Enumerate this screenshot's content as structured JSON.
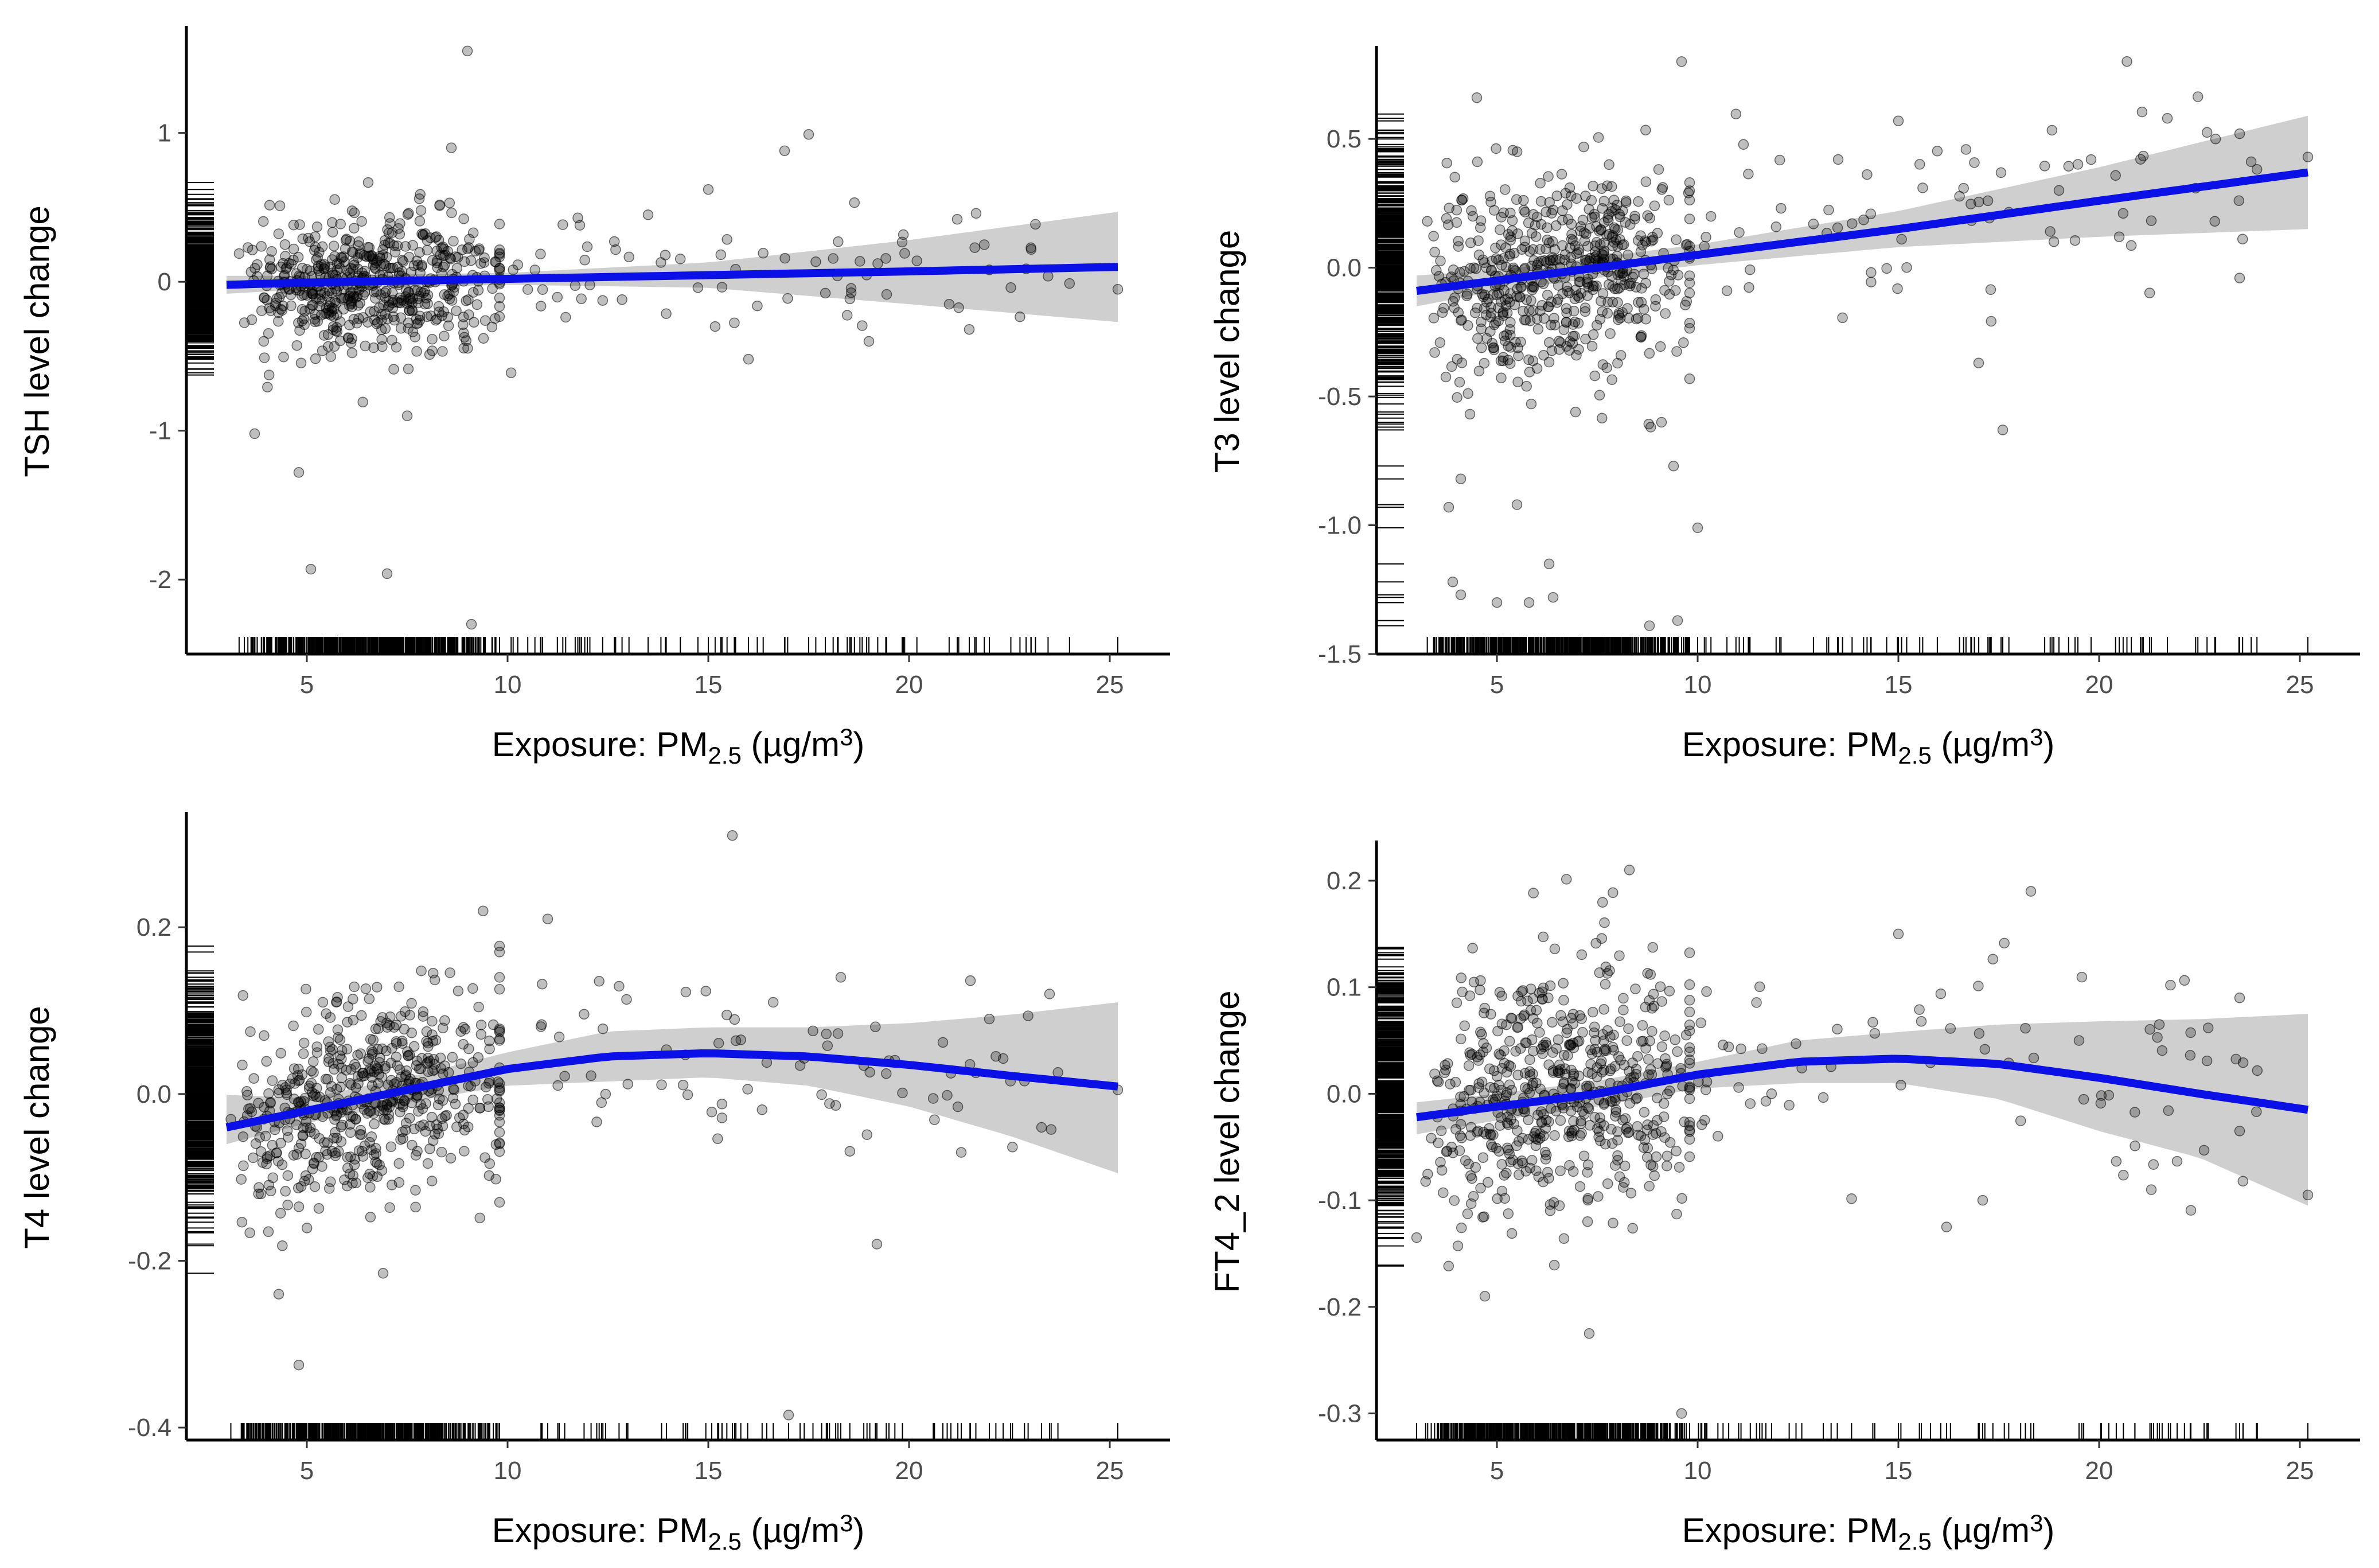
{
  "colors": {
    "fit_line": "#0a10e6",
    "band": "#bfbfbf",
    "points": "#000000"
  },
  "chart_data": [
    {
      "type": "scatter",
      "panel": "TSH",
      "title": "",
      "xlabel_prefix": "Exposure: PM",
      "xlabel_sub": "2.5",
      "xlabel_unit_open": " (µg/m",
      "xlabel_sup": "3",
      "xlabel_unit_close": ")",
      "ylabel": "TSH level change",
      "xlim": [
        2.0,
        26.5
      ],
      "ylim": [
        -2.5,
        1.7
      ],
      "xticks": [
        5,
        10,
        15,
        20,
        25
      ],
      "xtick_labels": [
        "5",
        "10",
        "15",
        "20",
        "25"
      ],
      "yticks": [
        -2,
        -1,
        0,
        1
      ],
      "ytick_labels": [
        "-2",
        "-1",
        "0",
        "1"
      ],
      "fit": {
        "x": [
          3.0,
          5,
          10,
          15,
          20,
          25.2
        ],
        "y": [
          -0.02,
          -0.005,
          0.02,
          0.045,
          0.07,
          0.1
        ],
        "lower": [
          -0.08,
          -0.05,
          -0.02,
          -0.04,
          -0.15,
          -0.27
        ],
        "upper": [
          0.04,
          0.04,
          0.06,
          0.13,
          0.28,
          0.47
        ]
      },
      "rug_y_range": [
        -0.7,
        0.8
      ],
      "cluster": {
        "x_min": 3.0,
        "x_max": 9.8,
        "y_sd": 0.24
      },
      "outliers": [
        [
          9.0,
          1.55
        ],
        [
          4.8,
          -1.28
        ],
        [
          5.1,
          -1.93
        ],
        [
          7.0,
          -1.96
        ],
        [
          3.7,
          -1.02
        ],
        [
          7.5,
          -0.9
        ],
        [
          8.6,
          0.9
        ],
        [
          17.5,
          0.99
        ],
        [
          16.9,
          0.88
        ],
        [
          13.5,
          0.45
        ],
        [
          15.0,
          0.62
        ],
        [
          19.0,
          -0.4
        ],
        [
          21.2,
          0.42
        ],
        [
          21.5,
          -0.32
        ],
        [
          16.0,
          -0.52
        ],
        [
          11.8,
          0.38
        ],
        [
          9.1,
          -2.3
        ],
        [
          25.2,
          -0.05
        ],
        [
          22.0,
          0.08
        ]
      ]
    },
    {
      "type": "scatter",
      "panel": "T3",
      "title": "",
      "xlabel_prefix": "Exposure: PM",
      "xlabel_sub": "2.5",
      "xlabel_unit_open": " (µg/m",
      "xlabel_sup": "3",
      "xlabel_unit_close": ")",
      "ylabel": "T3 level change",
      "xlim": [
        2.0,
        26.5
      ],
      "ylim": [
        -1.5,
        0.85
      ],
      "xticks": [
        5,
        10,
        15,
        20,
        25
      ],
      "xtick_labels": [
        "5",
        "10",
        "15",
        "20",
        "25"
      ],
      "yticks": [
        -1.5,
        -1.0,
        -0.5,
        0.0,
        0.5
      ],
      "ytick_labels": [
        "-1.5",
        "-1.0",
        "-0.5",
        "0.0",
        "0.5"
      ],
      "fit": {
        "x": [
          3.0,
          5,
          10,
          15,
          20,
          25.2
        ],
        "y": [
          -0.09,
          -0.05,
          0.05,
          0.15,
          0.26,
          0.37
        ],
        "lower": [
          -0.15,
          -0.09,
          0.01,
          0.08,
          0.12,
          0.15
        ],
        "upper": [
          -0.03,
          -0.01,
          0.09,
          0.22,
          0.39,
          0.59
        ]
      },
      "rug_y_range": [
        -1.4,
        0.6
      ],
      "cluster": {
        "x_min": 3.0,
        "x_max": 9.8,
        "y_sd": 0.2
      },
      "outliers": [
        [
          9.6,
          0.8
        ],
        [
          4.5,
          0.66
        ],
        [
          10.0,
          -1.01
        ],
        [
          3.9,
          -1.22
        ],
        [
          4.1,
          -1.27
        ],
        [
          5.0,
          -1.3
        ],
        [
          6.3,
          -1.15
        ],
        [
          6.4,
          -1.28
        ],
        [
          5.8,
          -1.3
        ],
        [
          9.5,
          -1.37
        ],
        [
          8.8,
          -1.39
        ],
        [
          4.1,
          -0.82
        ],
        [
          3.8,
          -0.93
        ],
        [
          5.5,
          -0.92
        ],
        [
          9.4,
          -0.77
        ],
        [
          9.1,
          -0.6
        ],
        [
          17.6,
          -0.63
        ],
        [
          17.0,
          -0.37
        ],
        [
          23.5,
          -0.04
        ],
        [
          21.7,
          0.58
        ],
        [
          15.0,
          0.57
        ],
        [
          23.5,
          0.52
        ],
        [
          25.2,
          0.43
        ],
        [
          13.5,
          0.42
        ],
        [
          19.0,
          0.3
        ],
        [
          20.5,
          0.12
        ]
      ]
    },
    {
      "type": "scatter",
      "panel": "T4",
      "title": "",
      "xlabel_prefix": "Exposure: PM",
      "xlabel_sub": "2.5",
      "xlabel_unit_open": " (µg/m",
      "xlabel_sup": "3",
      "xlabel_unit_close": ")",
      "ylabel": "T4 level change",
      "xlim": [
        2.0,
        26.5
      ],
      "ylim": [
        -0.415,
        0.335
      ],
      "xticks": [
        5,
        10,
        15,
        20,
        25
      ],
      "xtick_labels": [
        "5",
        "10",
        "15",
        "20",
        "25"
      ],
      "yticks": [
        -0.4,
        -0.2,
        0.0,
        0.2
      ],
      "ytick_labels": [
        "-0.4",
        "-0.2",
        "0.0",
        "0.2"
      ],
      "fit": {
        "x": [
          3.0,
          5,
          7.5,
          10,
          12.5,
          15,
          17.5,
          20,
          22.5,
          25.2
        ],
        "y": [
          -0.04,
          -0.02,
          0.005,
          0.03,
          0.045,
          0.049,
          0.045,
          0.035,
          0.022,
          0.009
        ],
        "lower": [
          -0.06,
          -0.035,
          -0.01,
          0.01,
          0.015,
          0.02,
          0.01,
          -0.015,
          -0.05,
          -0.095
        ],
        "upper": [
          -0.001,
          -0.005,
          0.02,
          0.05,
          0.075,
          0.08,
          0.08,
          0.085,
          0.095,
          0.11
        ]
      },
      "rug_y_range": [
        -0.22,
        0.2
      ],
      "cluster": {
        "x_min": 3.0,
        "x_max": 9.8,
        "y_sd": 0.06
      },
      "outliers": [
        [
          15.6,
          0.31
        ],
        [
          4.8,
          -0.325
        ],
        [
          17.0,
          -0.385
        ],
        [
          19.2,
          -0.18
        ],
        [
          4.3,
          -0.24
        ],
        [
          6.9,
          -0.215
        ],
        [
          11.0,
          0.21
        ],
        [
          18.3,
          0.14
        ],
        [
          23.5,
          0.12
        ],
        [
          25.2,
          0.005
        ],
        [
          21.3,
          -0.07
        ],
        [
          23.3,
          -0.04
        ],
        [
          22.0,
          0.09
        ],
        [
          19.5,
          0.04
        ]
      ]
    },
    {
      "type": "scatter",
      "panel": "FT4_2",
      "title": "",
      "xlabel_prefix": "Exposure: PM",
      "xlabel_sub": "2.5",
      "xlabel_unit_open": " (µg/m",
      "xlabel_sup": "3",
      "xlabel_unit_close": ")",
      "ylabel": "FT4_2 level change",
      "xlim": [
        2.0,
        26.5
      ],
      "ylim": [
        -0.325,
        0.235
      ],
      "xticks": [
        5,
        10,
        15,
        20,
        25
      ],
      "xtick_labels": [
        "5",
        "10",
        "15",
        "20",
        "25"
      ],
      "yticks": [
        -0.3,
        -0.2,
        -0.1,
        0.0,
        0.1,
        0.2
      ],
      "ytick_labels": [
        "-0.3",
        "-0.2",
        "-0.1",
        "0.0",
        "0.1",
        "0.2"
      ],
      "fit": {
        "x": [
          3.0,
          5,
          7.5,
          10,
          12.5,
          15,
          17.5,
          20,
          22.5,
          25.2
        ],
        "y": [
          -0.022,
          -0.012,
          0.0,
          0.018,
          0.03,
          0.033,
          0.028,
          0.015,
          0.0,
          -0.015
        ],
        "lower": [
          -0.038,
          -0.025,
          -0.012,
          0.005,
          0.01,
          0.01,
          -0.005,
          -0.035,
          -0.06,
          -0.105
        ],
        "upper": [
          -0.008,
          0.0,
          0.012,
          0.03,
          0.05,
          0.058,
          0.065,
          0.068,
          0.07,
          0.075
        ]
      },
      "rug_y_range": [
        -0.17,
        0.14
      ],
      "cluster": {
        "x_min": 3.0,
        "x_max": 9.8,
        "y_sd": 0.06
      },
      "outliers": [
        [
          9.6,
          -0.3
        ],
        [
          7.3,
          -0.225
        ],
        [
          3.0,
          -0.135
        ],
        [
          4.7,
          -0.19
        ],
        [
          18.3,
          0.19
        ],
        [
          8.3,
          0.21
        ],
        [
          15.0,
          0.15
        ],
        [
          25.2,
          -0.095
        ],
        [
          21.3,
          -0.09
        ],
        [
          16.2,
          -0.125
        ],
        [
          23.5,
          -0.035
        ],
        [
          23.5,
          0.09
        ],
        [
          21.5,
          0.065
        ],
        [
          19.5,
          0.05
        ],
        [
          17.1,
          -0.1
        ]
      ]
    }
  ]
}
